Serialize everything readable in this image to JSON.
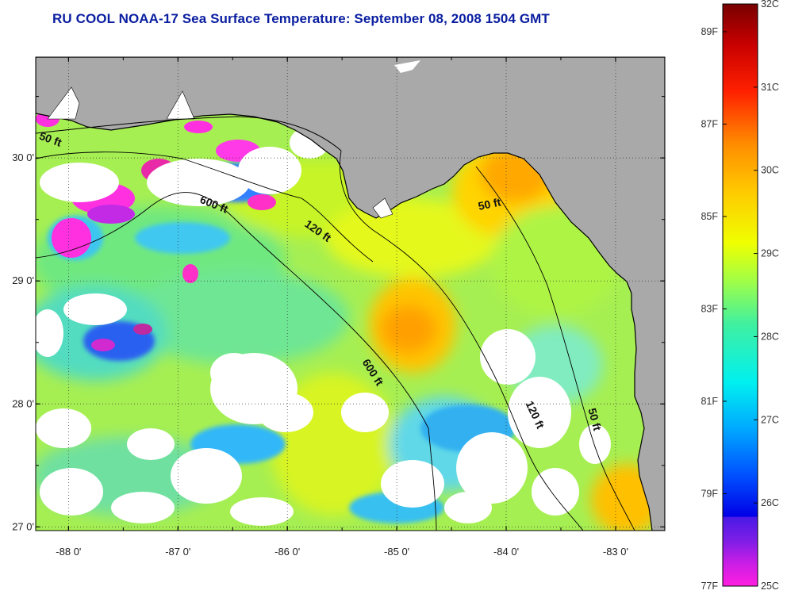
{
  "title": "RU COOL  NOAA-17  Sea Surface Temperature:  September 08, 2008 1504 GMT",
  "map": {
    "lon_range": [
      -88.3,
      -82.55
    ],
    "lat_range": [
      26.97,
      30.82
    ],
    "lon_ticks": [
      {
        "value": -88,
        "label": "-88 0'"
      },
      {
        "value": -87,
        "label": "-87 0'"
      },
      {
        "value": -86,
        "label": "-86 0'"
      },
      {
        "value": -85,
        "label": "-85 0'"
      },
      {
        "value": -84,
        "label": "-84 0'"
      },
      {
        "value": -83,
        "label": "-83 0'"
      }
    ],
    "lat_ticks": [
      {
        "value": 27,
        "label": "27 0'"
      },
      {
        "value": 28,
        "label": "28 0'"
      },
      {
        "value": 29,
        "label": "29 0'"
      },
      {
        "value": 30,
        "label": "30 0'"
      }
    ],
    "grid": "dotted",
    "colors": {
      "land": "#a9a9a9",
      "cloud": "#ffffff",
      "border": "#000000"
    },
    "contour_labels": [
      {
        "text": "50 ft"
      },
      {
        "text": "600 ft"
      },
      {
        "text": "120 ft"
      },
      {
        "text": "50 ft"
      },
      {
        "text": "600 ft"
      },
      {
        "text": "120 ft"
      },
      {
        "text": "50 ft"
      }
    ]
  },
  "colorbar": {
    "c_labels": [
      {
        "value": 32,
        "label": "32C"
      },
      {
        "value": 31,
        "label": "31C"
      },
      {
        "value": 30,
        "label": "30C"
      },
      {
        "value": 29,
        "label": "29C"
      },
      {
        "value": 28,
        "label": "28C"
      },
      {
        "value": 27,
        "label": "27C"
      },
      {
        "value": 26,
        "label": "26C"
      },
      {
        "value": 25,
        "label": "25C"
      }
    ],
    "f_labels": [
      {
        "value": 89,
        "label": "89F"
      },
      {
        "value": 87,
        "label": "87F"
      },
      {
        "value": 85,
        "label": "85F"
      },
      {
        "value": 83,
        "label": "83F"
      },
      {
        "value": 81,
        "label": "81F"
      },
      {
        "value": 79,
        "label": "79F"
      },
      {
        "value": 77,
        "label": "77F"
      }
    ],
    "range_c": [
      25,
      32
    ],
    "stops": [
      {
        "t": 0.0,
        "color": "#ff1ee0"
      },
      {
        "t": 0.04,
        "color": "#c81ee6"
      },
      {
        "t": 0.08,
        "color": "#7a1ee6"
      },
      {
        "t": 0.118,
        "color": "#4a1ae6"
      },
      {
        "t": 0.12,
        "color": "#0000e6"
      },
      {
        "t": 0.19,
        "color": "#0050ff"
      },
      {
        "t": 0.27,
        "color": "#00a8ff"
      },
      {
        "t": 0.35,
        "color": "#00f0f0"
      },
      {
        "t": 0.45,
        "color": "#40f0a0"
      },
      {
        "t": 0.53,
        "color": "#a8ff40"
      },
      {
        "t": 0.59,
        "color": "#f0ff00"
      },
      {
        "t": 0.68,
        "color": "#ffc800"
      },
      {
        "t": 0.76,
        "color": "#ff8c00"
      },
      {
        "t": 0.85,
        "color": "#ff2000"
      },
      {
        "t": 0.93,
        "color": "#c80000"
      },
      {
        "t": 1.0,
        "color": "#780000"
      }
    ]
  }
}
